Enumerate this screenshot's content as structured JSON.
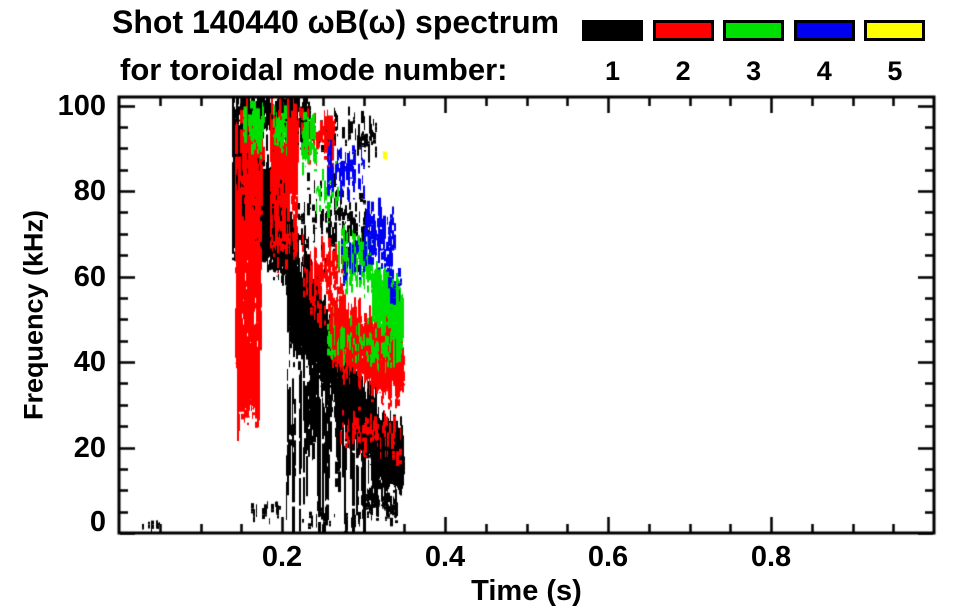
{
  "header": {
    "title": "Shot 140440 ωB(ω) spectrum",
    "subtitle": "for toroidal mode number:"
  },
  "legend": {
    "position": "top-right",
    "modes": [
      {
        "label": "1",
        "color": "#000000"
      },
      {
        "label": "2",
        "color": "#FF0000"
      },
      {
        "label": "3",
        "color": "#00E000"
      },
      {
        "label": "4",
        "color": "#0000F0"
      },
      {
        "label": "5",
        "color": "#FFFF00"
      }
    ]
  },
  "chart_data": {
    "type": "scatter",
    "title": "Shot 140440 ωB(ω) spectrum for toroidal mode number: 1 2 3 4 5",
    "xlabel": "Time (s)",
    "ylabel": "Frequency (kHz)",
    "xlim": [
      0,
      1.0
    ],
    "ylim": [
      0,
      102
    ],
    "xticks": [
      0.2,
      0.4,
      0.6,
      0.8
    ],
    "xtick_labels": [
      "0.2",
      "0.4",
      "0.6",
      "0.8"
    ],
    "yticks": [
      0,
      20,
      40,
      60,
      80,
      100
    ],
    "ytick_labels": [
      "0",
      "20",
      "40",
      "60",
      "80",
      "100"
    ],
    "x_minor_step": 0.05,
    "y_minor_step": 5,
    "grid": false,
    "legend_position": "top",
    "band_format": "[t_start_s, t_end_s, f_center_start_kHz, f_center_end_kHz, f_spread_kHz, streak_count, streak_len_kHz]",
    "description": "Magnetic fluctuation spectrogram scatter: a strong n=1 (black) mode chirps down from ~100 kHz at t=0.15 s to ~17 kHz at t=0.34 s; n=2 (red) activity parallels it ~20 kHz higher ending near 40 kHz; n=3 (green) clusters near 50-65 kHz late; sparse n=4 (blue) specks at 60-90 kHz; single n=5 (yellow) speck near 89 kHz at t=0.32 s. No activity after t=0.35 s.",
    "series": [
      {
        "name": "n=1",
        "mode": 1,
        "color": "#000000",
        "bands": [
          [
            0.138,
            0.168,
            80,
            80,
            17,
            260,
            9
          ],
          [
            0.165,
            0.205,
            78,
            70,
            11,
            600,
            6
          ],
          [
            0.17,
            0.2,
            77,
            76,
            6,
            350,
            5
          ],
          [
            0.138,
            0.235,
            97,
            97,
            6,
            170,
            6
          ],
          [
            0.235,
            0.315,
            93,
            93,
            6,
            60,
            3
          ],
          [
            0.205,
            0.245,
            60,
            47,
            12,
            380,
            7
          ],
          [
            0.245,
            0.275,
            45,
            35,
            10,
            330,
            6
          ],
          [
            0.275,
            0.31,
            33,
            23,
            9,
            380,
            5
          ],
          [
            0.31,
            0.347,
            20,
            17,
            7,
            450,
            5
          ],
          [
            0.205,
            0.315,
            26,
            22,
            20,
            100,
            16
          ],
          [
            0.215,
            0.31,
            72,
            72,
            12,
            130,
            3
          ],
          [
            0.3,
            0.34,
            7,
            6,
            4,
            50,
            3
          ],
          [
            0.02,
            0.05,
            1.5,
            1.5,
            1.5,
            8,
            1.5
          ],
          [
            0.22,
            0.3,
            3,
            3,
            2.5,
            25,
            2
          ],
          [
            0.16,
            0.2,
            5.5,
            5.5,
            3,
            12,
            2
          ]
        ]
      },
      {
        "name": "n=2",
        "mode": 2,
        "color": "#FF0000",
        "bands": [
          [
            0.142,
            0.172,
            62,
            62,
            36,
            200,
            10
          ],
          [
            0.145,
            0.17,
            36,
            36,
            9,
            160,
            5
          ],
          [
            0.15,
            0.175,
            85,
            85,
            10,
            80,
            6
          ],
          [
            0.185,
            0.218,
            88,
            88,
            11,
            150,
            8
          ],
          [
            0.185,
            0.218,
            72,
            72,
            9,
            60,
            5
          ],
          [
            0.218,
            0.265,
            93,
            93,
            6,
            60,
            4
          ],
          [
            0.225,
            0.275,
            60,
            58,
            11,
            90,
            4
          ],
          [
            0.258,
            0.3,
            47,
            43,
            8,
            240,
            5
          ],
          [
            0.3,
            0.347,
            43,
            39,
            8,
            420,
            5
          ],
          [
            0.27,
            0.345,
            24,
            22,
            6,
            60,
            3
          ]
        ]
      },
      {
        "name": "n=3",
        "mode": 3,
        "color": "#00E000",
        "bands": [
          [
            0.152,
            0.178,
            95,
            95,
            5,
            50,
            4
          ],
          [
            0.188,
            0.205,
            94,
            94,
            6,
            35,
            4
          ],
          [
            0.223,
            0.24,
            92,
            92,
            7,
            30,
            4
          ],
          [
            0.24,
            0.268,
            80,
            80,
            8,
            25,
            3
          ],
          [
            0.268,
            0.31,
            64,
            62,
            7,
            110,
            4
          ],
          [
            0.31,
            0.347,
            55,
            52,
            7,
            200,
            5
          ],
          [
            0.255,
            0.31,
            45,
            45,
            6,
            45,
            3
          ],
          [
            0.31,
            0.347,
            42,
            42,
            4,
            40,
            3
          ]
        ]
      },
      {
        "name": "n=4",
        "mode": 4,
        "color": "#0000F0",
        "bands": [
          [
            0.255,
            0.3,
            84,
            84,
            6,
            55,
            4
          ],
          [
            0.3,
            0.337,
            70,
            68,
            7,
            70,
            4
          ],
          [
            0.27,
            0.3,
            64,
            64,
            5,
            18,
            3
          ],
          [
            0.33,
            0.345,
            58,
            58,
            4,
            12,
            3
          ]
        ]
      },
      {
        "name": "n=5",
        "mode": 5,
        "color": "#FFFF00",
        "bands": [
          [
            0.322,
            0.328,
            89,
            89,
            1.5,
            3,
            2
          ]
        ]
      }
    ]
  }
}
